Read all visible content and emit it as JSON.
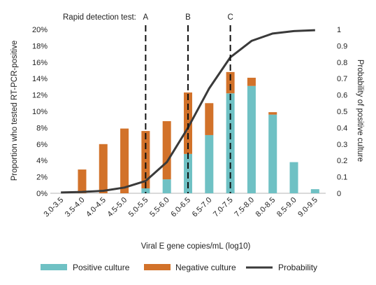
{
  "chart_data": {
    "type": "bar",
    "xlabel": "Viral E gene copies/mL (log10)",
    "ylabel": "Proportion who tested RT-PCR-positive",
    "y2label": "Probability of positive culture",
    "categories": [
      "3.0-3.5",
      "3.5-4.0",
      "4.0-4.5",
      "4.5-5.0",
      "5.0-5.5",
      "5.5-6.0",
      "6.0-6.5",
      "6.5-7.0",
      "7.0-7.5",
      "7.5-8.0",
      "8.0-8.5",
      "8.5-9.0",
      "9.0-9.5"
    ],
    "ylim": [
      0,
      20
    ],
    "y_ticks": [
      "0%",
      "2%",
      "4%",
      "6%",
      "8%",
      "10%",
      "12%",
      "14%",
      "16%",
      "18%",
      "20%"
    ],
    "y2lim": [
      0,
      1
    ],
    "y2_ticks": [
      "0",
      "0.1",
      "0.2",
      "0.3",
      "0.4",
      "0.5",
      "0.6",
      "0.7",
      "0.8",
      "0.9",
      "1"
    ],
    "stacked": true,
    "series": [
      {
        "name": "Positive culture",
        "color": "#6fc1c4",
        "values": [
          0,
          0,
          0,
          0,
          0.6,
          1.7,
          4.8,
          7.1,
          12.2,
          13.1,
          9.6,
          3.8,
          0.5
        ]
      },
      {
        "name": "Negative culture",
        "color": "#d2722a",
        "values": [
          0,
          2.9,
          6.0,
          7.9,
          7.0,
          7.1,
          7.5,
          3.9,
          2.6,
          1.0,
          0.3,
          0,
          0
        ]
      }
    ],
    "line_series": {
      "name": "Probability",
      "color": "#3a3a3a",
      "axis": "right",
      "values": [
        0.005,
        0.008,
        0.015,
        0.035,
        0.075,
        0.19,
        0.4,
        0.64,
        0.83,
        0.93,
        0.975,
        0.99,
        0.995
      ]
    },
    "annotations": {
      "label": "Rapid detection test:",
      "lines": [
        {
          "label": "A",
          "x_position": 4.0
        },
        {
          "label": "B",
          "x_position": 6.0
        },
        {
          "label": "C",
          "x_position": 8.0
        }
      ]
    },
    "legend": {
      "placement": "bottom",
      "items": [
        "Positive culture",
        "Negative culture",
        "Probability"
      ]
    }
  }
}
